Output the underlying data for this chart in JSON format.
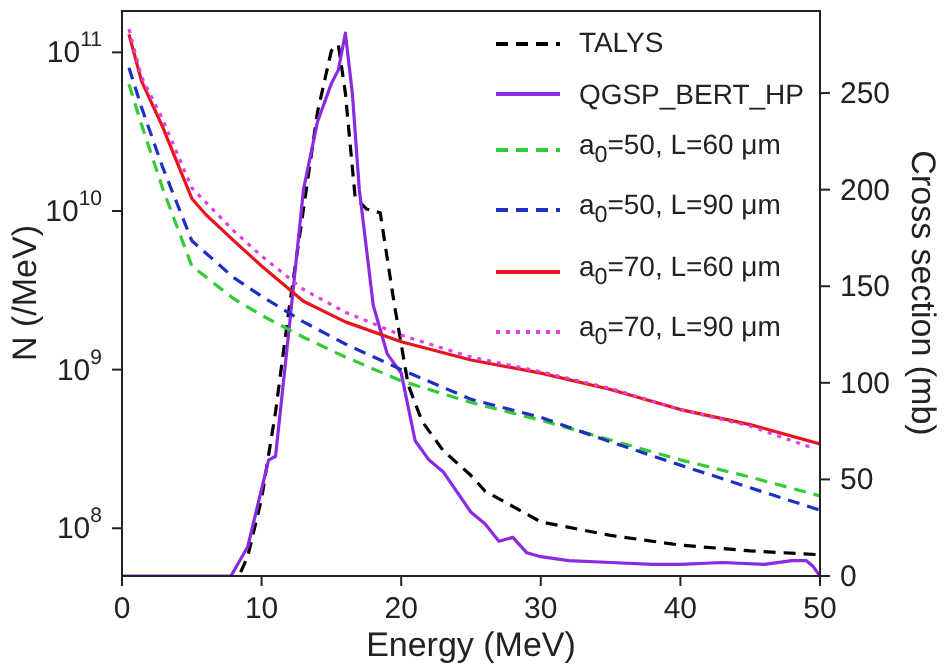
{
  "chart_data": {
    "type": "line",
    "xlabel": "Energy (MeV)",
    "ylabel": "N (/MeV)",
    "y2label": "Cross section (mb)",
    "log": "y",
    "legend": "top right",
    "marker": "none",
    "xlim": [
      0,
      50
    ],
    "xticks": [
      0,
      10,
      20,
      30,
      40,
      50
    ],
    "ylim": [
      50000000,
      185000000000
    ],
    "yticks": [
      {
        "value": 100000000,
        "label": "10$^{8}$"
      },
      {
        "value": 1000000000,
        "label": "10$^{9}$"
      },
      {
        "value": 10000000000,
        "label": "10$^{10}$"
      },
      {
        "value": 100000000000,
        "label": "10$^{11}$"
      }
    ],
    "y2lim": [
      0,
      293
    ],
    "y2ticks": [
      0,
      50,
      100,
      150,
      200,
      250
    ],
    "series": [
      {
        "name": "TALYS",
        "color": "#000000",
        "axis": "y2",
        "line_style": "dashed",
        "x": [
          8.5,
          9,
          10,
          11,
          12,
          13,
          14,
          15,
          15.5,
          16,
          16.7,
          17.5,
          18.5,
          19.5,
          20.5,
          21.5,
          23,
          25,
          26,
          30,
          35,
          40,
          45,
          50
        ],
        "values": [
          2,
          10,
          40,
          85,
          140,
          190,
          240,
          272,
          275,
          250,
          196,
          190,
          188,
          141,
          99,
          80,
          65,
          52,
          44,
          28,
          21,
          16,
          13,
          11
        ]
      },
      {
        "name": "QGSP_BERT_HP",
        "color": "#8a2be2",
        "axis": "y2",
        "line_style": "solid",
        "x": [
          0,
          7.8,
          9,
          10,
          10.5,
          11,
          12,
          13,
          14,
          15,
          15.5,
          16,
          16.5,
          17,
          18,
          19,
          20,
          21,
          22,
          23,
          25,
          26,
          27,
          28,
          29,
          30,
          32,
          35,
          38,
          40,
          43,
          46,
          48,
          49,
          49.5,
          50
        ],
        "values": [
          0,
          0,
          15,
          45,
          60,
          62,
          130,
          200,
          235,
          255,
          262,
          281,
          250,
          200,
          140,
          115,
          105,
          70,
          60,
          54,
          33,
          27,
          18,
          20,
          12,
          10,
          8,
          7,
          6,
          6,
          7,
          6,
          8,
          8,
          5,
          0
        ]
      },
      {
        "name": "a$_{0}$=50, L=60 μm",
        "color": "#33cc33",
        "line_style": "dashed",
        "x": [
          0.5,
          1.4,
          2.9,
          5,
          8,
          10,
          13,
          16,
          20,
          25,
          30,
          35,
          40,
          45,
          50
        ],
        "values": [
          63000000000,
          35000000000,
          14000000000,
          4500000000,
          2800000000,
          2200000000,
          1600000000,
          1200000000,
          850000000,
          620000000,
          480000000,
          360000000,
          270000000,
          210000000,
          160000000
        ]
      },
      {
        "name": "a$_{0}$=50, L=90 μm",
        "color": "#1f2fbf",
        "line_style": "dashed",
        "x": [
          0.5,
          1.4,
          2.9,
          5,
          8,
          10,
          13,
          16,
          20,
          25,
          30,
          35,
          40,
          45,
          50
        ],
        "values": [
          80000000000,
          45000000000,
          19000000000,
          6500000000,
          3800000000,
          2900000000,
          2000000000,
          1450000000,
          1000000000,
          650000000,
          500000000,
          350000000,
          250000000,
          180000000,
          130000000
        ]
      },
      {
        "name": "a$_{0}$=70, L=60 μm",
        "color": "#e8141e",
        "line_style": "solid",
        "x": [
          0.5,
          1.4,
          2.9,
          5,
          6,
          8,
          10,
          13,
          16,
          20,
          25,
          30,
          35,
          40,
          45,
          50
        ],
        "values": [
          130000000000,
          66000000000,
          34000000000,
          12000000000,
          9500000000,
          6500000000,
          4500000000,
          2700000000,
          2000000000,
          1500000000,
          1150000000,
          950000000,
          750000000,
          560000000,
          450000000,
          340000000
        ]
      },
      {
        "name": "a$_{0}$=70, L=90 μm",
        "color": "#e040e0",
        "line_style": "dotted",
        "x": [
          0.5,
          1.4,
          2.9,
          5,
          8,
          10,
          13,
          16,
          20,
          25,
          30,
          35,
          40,
          45,
          49.5
        ],
        "values": [
          140000000000,
          70000000000,
          38000000000,
          14000000000,
          7500000000,
          5200000000,
          3200000000,
          2300000000,
          1650000000,
          1200000000,
          970000000,
          760000000,
          560000000,
          440000000,
          320000000
        ]
      }
    ]
  }
}
